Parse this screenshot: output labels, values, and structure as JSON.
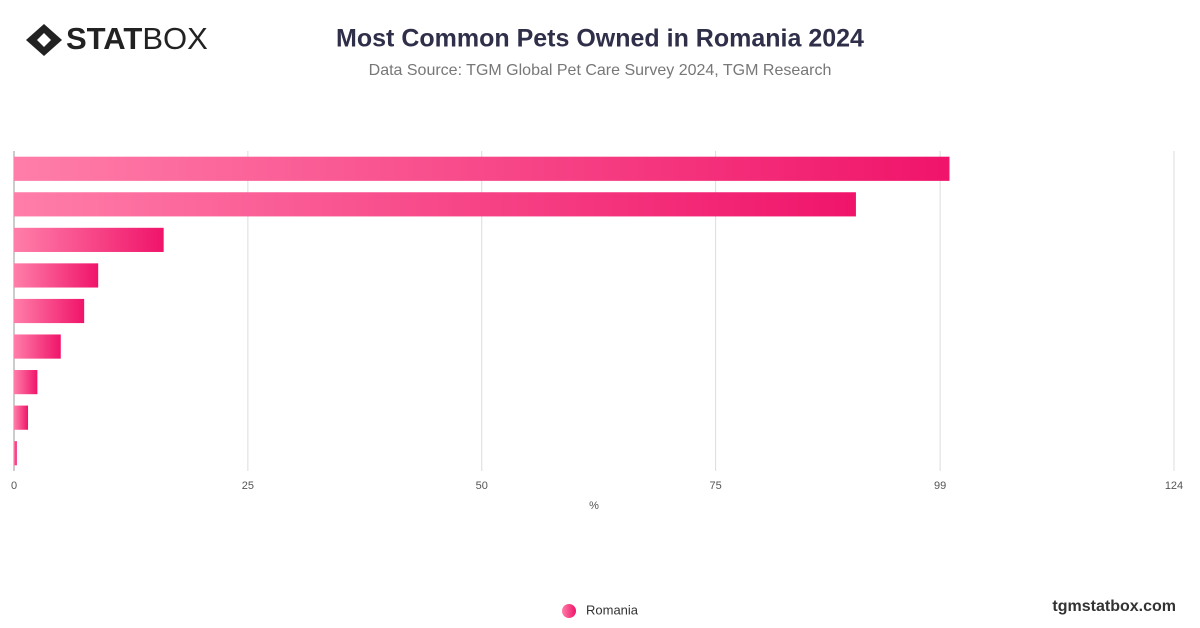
{
  "logo_bold": "STAT",
  "logo_light": "BOX",
  "footer": "tgmstatbox.com",
  "chart_data": {
    "type": "hbar",
    "title": "Most Common Pets Owned in Romania 2024",
    "subtitle": "Data Source: TGM Global Pet Care Survey 2024, TGM Research",
    "x_label": "%",
    "categories": [
      null,
      null,
      null,
      null,
      null,
      null,
      null,
      null,
      null
    ],
    "series": [
      {
        "name": "Romania",
        "color": "#f0146a",
        "values": [
          100,
          90,
          16,
          9,
          7.5,
          5,
          2.5,
          1.5,
          0.3
        ]
      }
    ],
    "xlim": [
      0,
      124
    ],
    "xticks": [
      0,
      25,
      50,
      75,
      99,
      124
    ],
    "grid": true
  }
}
